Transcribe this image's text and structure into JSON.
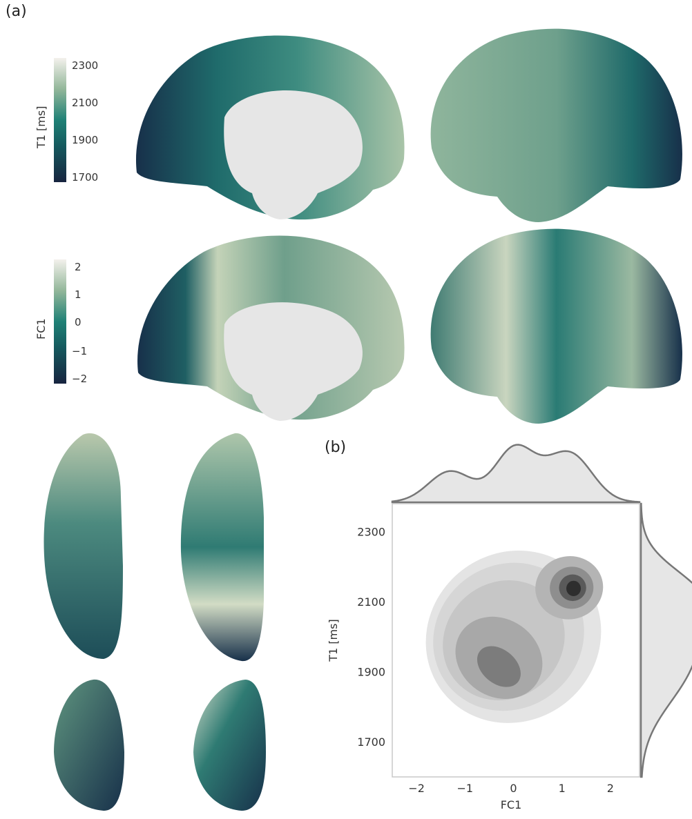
{
  "panel_a": {
    "label": "(a)",
    "colorbar_t1": {
      "title": "T1 [ms]",
      "ticks": [
        "2300",
        "2100",
        "1900",
        "1700"
      ]
    },
    "colorbar_fc1": {
      "title": "FC1",
      "ticks": [
        "2",
        "1",
        "0",
        "−1",
        "−2"
      ]
    }
  },
  "panel_b": {
    "label": "(b)"
  },
  "chart_data": {
    "type": "heatmap",
    "kind": "bivariate kernel density (joint plot with marginal densities)",
    "xlabel": "FC1",
    "ylabel": "T1 [ms]",
    "x_ticks": [
      "−2",
      "−1",
      "0",
      "1",
      "2"
    ],
    "y_ticks": [
      "2300",
      "2100",
      "1900",
      "1700"
    ],
    "xlim": [
      -2.5,
      2.6
    ],
    "ylim": [
      1600,
      2380
    ],
    "density_peaks": [
      {
        "x": 1.2,
        "y": 2140,
        "level": "highest"
      },
      {
        "x": -0.3,
        "y": 1910,
        "level": "high"
      },
      {
        "x": 0.0,
        "y": 2100,
        "level": "medium"
      }
    ],
    "marginal_x_modes": [
      -1.3,
      0.0,
      1.2
    ],
    "marginal_y_modes": [
      1900,
      2120
    ],
    "grid": false
  }
}
